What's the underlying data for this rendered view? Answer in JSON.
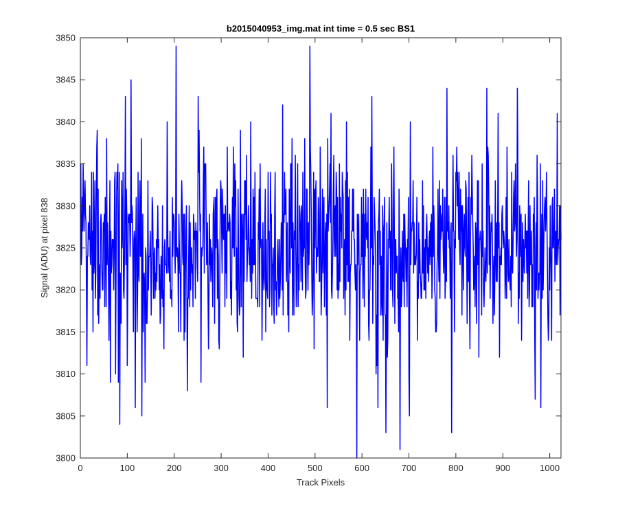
{
  "chart_data": {
    "type": "line",
    "title": "b2015040953_img.mat int time = 0.5 sec   BS1",
    "xlabel": "Track Pixels",
    "ylabel": "Signal (ADU) at pixel 838",
    "xlim": [
      0,
      1024
    ],
    "ylim": [
      3800,
      3850
    ],
    "xticks": [
      "0",
      "100",
      "200",
      "300",
      "400",
      "500",
      "600",
      "700",
      "800",
      "900",
      "1000"
    ],
    "yticks": [
      "3800",
      "3805",
      "3810",
      "3815",
      "3820",
      "3825",
      "3830",
      "3835",
      "3840",
      "3845",
      "3850"
    ],
    "grid": false,
    "series": [
      {
        "color": "#0000ff",
        "generated": "1024 noisy samples (mean about 3825, most between 3810 and 3840, extremes 3800 to 3849); the values below are the prominent peaks and dips read from the plot",
        "anchors": [
          {
            "x": 13,
            "y": 3811
          },
          {
            "x": 35,
            "y": 3839
          },
          {
            "x": 55,
            "y": 3838
          },
          {
            "x": 63,
            "y": 3809
          },
          {
            "x": 83,
            "y": 3804
          },
          {
            "x": 95,
            "y": 3843
          },
          {
            "x": 107,
            "y": 3845
          },
          {
            "x": 116,
            "y": 3806
          },
          {
            "x": 130,
            "y": 3805
          },
          {
            "x": 203,
            "y": 3849
          },
          {
            "x": 227,
            "y": 3808
          },
          {
            "x": 250,
            "y": 3843
          },
          {
            "x": 256,
            "y": 3809
          },
          {
            "x": 362,
            "y": 3840
          },
          {
            "x": 430,
            "y": 3842
          },
          {
            "x": 450,
            "y": 3838
          },
          {
            "x": 488,
            "y": 3849
          },
          {
            "x": 525,
            "y": 3806
          },
          {
            "x": 588,
            "y": 3800
          },
          {
            "x": 620,
            "y": 3843
          },
          {
            "x": 633,
            "y": 3806
          },
          {
            "x": 650,
            "y": 3803
          },
          {
            "x": 680,
            "y": 3801
          },
          {
            "x": 700,
            "y": 3805
          },
          {
            "x": 790,
            "y": 3803
          },
          {
            "x": 780,
            "y": 3844
          },
          {
            "x": 865,
            "y": 3844
          },
          {
            "x": 930,
            "y": 3844
          },
          {
            "x": 968,
            "y": 3807
          },
          {
            "x": 980,
            "y": 3806
          },
          {
            "x": 1015,
            "y": 3841
          }
        ]
      }
    ]
  }
}
